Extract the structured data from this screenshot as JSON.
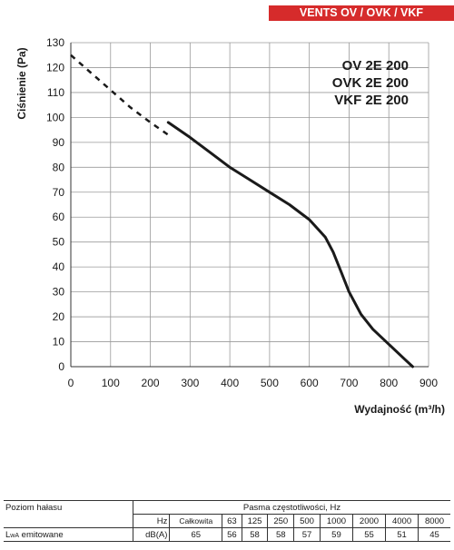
{
  "header": {
    "banner": "VENTS OV / OVK / VKF"
  },
  "models": [
    "OV 2E 200",
    "OVK 2E 200",
    "VKF 2E 200"
  ],
  "chart_data": {
    "type": "line",
    "xlabel": "Wydajność (m³/h)",
    "ylabel": "Ciśnienie (Pa)",
    "xlim": [
      0,
      900
    ],
    "ylim": [
      0,
      130
    ],
    "xticks": [
      0,
      100,
      200,
      300,
      400,
      500,
      600,
      700,
      800,
      900
    ],
    "yticks": [
      0,
      10,
      20,
      30,
      40,
      50,
      60,
      70,
      80,
      90,
      100,
      110,
      120,
      130
    ],
    "grid": true,
    "series": [
      {
        "style": "dashed",
        "x": [
          0,
          50,
          100,
          150,
          200,
          245
        ],
        "y": [
          125,
          118,
          111,
          104,
          98,
          93
        ]
      },
      {
        "style": "solid",
        "x": [
          245,
          300,
          350,
          400,
          450,
          500,
          550,
          600,
          640,
          660,
          680,
          700,
          730,
          760,
          800,
          840,
          860
        ],
        "y": [
          98,
          92,
          86,
          80,
          75,
          70,
          65,
          59,
          52,
          46,
          38,
          30,
          21,
          15,
          9,
          3,
          0
        ]
      }
    ],
    "color": "#1a1a1a"
  },
  "noise_table": {
    "title": "Poziom hałasu",
    "band_header": "Pasma częstotliwości, Hz",
    "hz_label": "Hz",
    "unit_label": "dB(A)",
    "total_label": "Całkowita",
    "row_label_prefix": "L",
    "row_label_sub": "wA",
    "row_label_suffix": " emitowane",
    "frequencies": [
      "63",
      "125",
      "250",
      "500",
      "1000",
      "2000",
      "4000",
      "8000"
    ],
    "total": "65",
    "values": [
      "56",
      "58",
      "58",
      "57",
      "59",
      "55",
      "51",
      "45"
    ]
  }
}
